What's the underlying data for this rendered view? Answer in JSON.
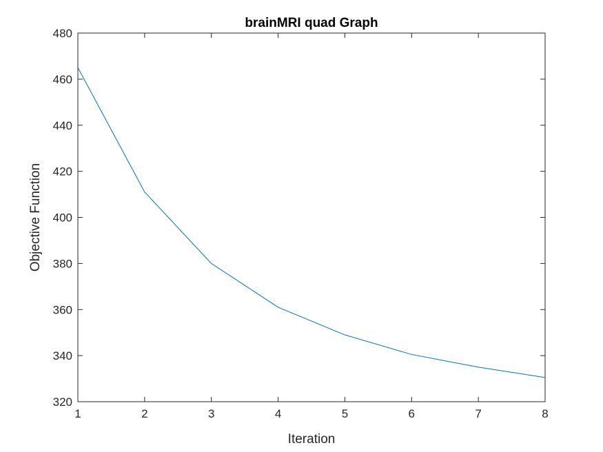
{
  "chart_data": {
    "type": "line",
    "title": "brainMRI quad Graph",
    "xlabel": "Iteration",
    "ylabel": "Objective Function",
    "xlim": [
      1,
      8
    ],
    "ylim": [
      320,
      480
    ],
    "xticks": [
      "1",
      "2",
      "3",
      "4",
      "5",
      "6",
      "7",
      "8"
    ],
    "yticks": [
      "320",
      "340",
      "360",
      "380",
      "400",
      "420",
      "440",
      "460",
      "480"
    ],
    "grid": false,
    "series": [
      {
        "color": "#0072BD",
        "x": [
          1,
          2,
          3,
          4,
          5,
          6,
          7,
          8
        ],
        "y": [
          465,
          411,
          380,
          361,
          349,
          340.5,
          335,
          330.5
        ]
      }
    ]
  }
}
